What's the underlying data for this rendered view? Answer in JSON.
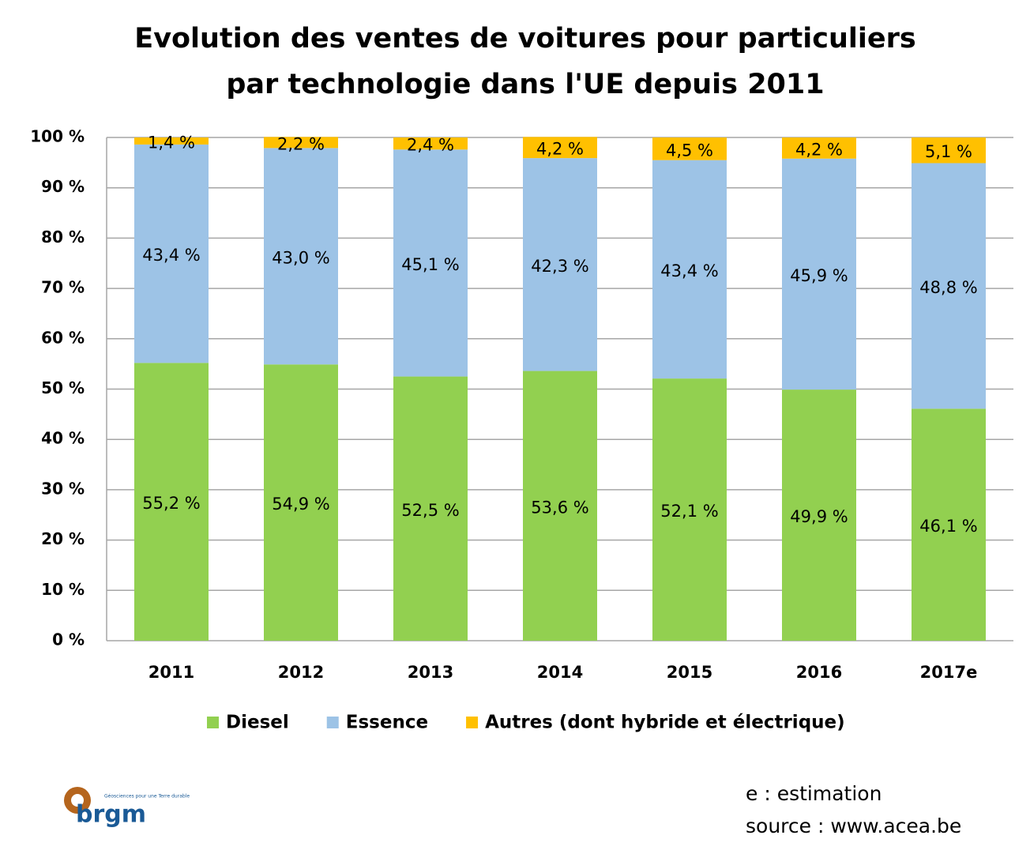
{
  "chart_data": {
    "type": "stacked-bar",
    "title": [
      "Evolution des ventes de voitures pour particuliers",
      "par technologie dans l'UE depuis 2011"
    ],
    "categories": [
      "2011",
      "2012",
      "2013",
      "2014",
      "2015",
      "2016",
      "2017e"
    ],
    "series": [
      {
        "name": "Diesel",
        "color": "#92d050",
        "values": [
          55.2,
          54.9,
          52.5,
          53.6,
          52.1,
          49.9,
          46.1
        ],
        "value_labels": [
          "55,2 %",
          "54,9 %",
          "52,5 %",
          "53,6 %",
          "52,1 %",
          "49,9 %",
          "46,1 %"
        ]
      },
      {
        "name": "Essence",
        "color": "#9dc3e6",
        "values": [
          43.4,
          43.0,
          45.1,
          42.3,
          43.4,
          45.9,
          48.8
        ],
        "value_labels": [
          "43,4 %",
          "43,0 %",
          "45,1 %",
          "42,3 %",
          "43,4 %",
          "45,9 %",
          "48,8 %"
        ]
      },
      {
        "name": "Autres (dont hybride et électrique)",
        "color": "#ffc000",
        "values": [
          1.4,
          2.2,
          2.4,
          4.2,
          4.5,
          4.2,
          5.1
        ],
        "value_labels": [
          "1,4 %",
          "2,2 %",
          "2,4 %",
          "4,2 %",
          "4,5 %",
          "4,2 %",
          "5,1 %"
        ]
      }
    ],
    "ylim": [
      0,
      100
    ],
    "yticks": [
      {
        "value": 0,
        "label": "0 %"
      },
      {
        "value": 10,
        "label": "10 %"
      },
      {
        "value": 20,
        "label": "20 %"
      },
      {
        "value": 30,
        "label": "30 %"
      },
      {
        "value": 40,
        "label": "40 %"
      },
      {
        "value": 50,
        "label": "50 %"
      },
      {
        "value": 60,
        "label": "60 %"
      },
      {
        "value": 70,
        "label": "70 %"
      },
      {
        "value": 80,
        "label": "80 %"
      },
      {
        "value": 90,
        "label": "90 %"
      },
      {
        "value": 100,
        "label": "100 %"
      }
    ],
    "grid": true,
    "legend": "bottom"
  },
  "notes": [
    "e : estimation",
    "source : www.acea.be"
  ],
  "logo": {
    "name": "brgm",
    "tagline": "Géosciences pour une Terre durable"
  }
}
